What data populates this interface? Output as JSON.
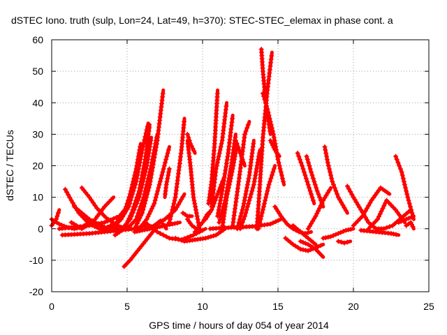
{
  "chart_data": {
    "type": "scatter",
    "title": "dSTEC Iono. truth (sulp, Lon=24, Lat=49, h=370): STEC-STEC_elemax in phase cont. a",
    "xlabel": "GPS time / hours of day 054 of year 2014",
    "ylabel": "dSTEC  / TECUs",
    "xlim": [
      0,
      25
    ],
    "ylim": [
      -20,
      60
    ],
    "xticks": [
      "0",
      "5",
      "10",
      "15",
      "20",
      "25"
    ],
    "yticks": [
      "-20",
      "-10",
      "0",
      "10",
      "20",
      "30",
      "40",
      "50",
      "60"
    ],
    "grid": true,
    "marker": "+",
    "color": "#ff0000",
    "series": [
      {
        "x": [
          0.0,
          0.3,
          0.5
        ],
        "y": [
          1,
          3,
          6
        ]
      },
      {
        "x": [
          0.0,
          0.5,
          1.0,
          1.5,
          2.0,
          2.5
        ],
        "y": [
          3,
          1.5,
          0.5,
          0,
          0.5,
          2
        ]
      },
      {
        "x": [
          0.7,
          1.5,
          2.5,
          3.5,
          4.5,
          5.5,
          6.2
        ],
        "y": [
          -2,
          -1.8,
          -1.5,
          -1,
          -0.5,
          0,
          1
        ]
      },
      {
        "x": [
          0.9,
          1.3,
          1.8,
          2.5,
          3.2,
          4.0
        ],
        "y": [
          12.5,
          9,
          5,
          1.5,
          0,
          0
        ]
      },
      {
        "x": [
          2.0,
          2.5,
          3.0,
          3.6,
          4.2,
          4.8
        ],
        "y": [
          13,
          10,
          6.5,
          3.5,
          1.5,
          0
        ]
      },
      {
        "x": [
          1.3,
          2.0,
          2.8,
          3.5,
          4.1
        ],
        "y": [
          2,
          0,
          2.5,
          7,
          10
        ]
      },
      {
        "x": [
          1.5,
          2.5,
          3.5,
          4.5,
          5.0
        ],
        "y": [
          7,
          3,
          0.5,
          0,
          1
        ]
      },
      {
        "x": [
          0.5,
          1.5,
          2.5,
          3.5,
          4.5,
          5.0
        ],
        "y": [
          0,
          0.5,
          1,
          2,
          4,
          7
        ]
      },
      {
        "x": [
          4.8,
          5.2,
          5.7,
          6.2,
          6.7
        ],
        "y": [
          -12,
          -10,
          -7,
          -4,
          -1
        ]
      },
      {
        "x": [
          3.5,
          4.3,
          4.8,
          5.2,
          5.6,
          5.9
        ],
        "y": [
          0,
          2,
          5,
          11,
          19,
          27
        ]
      },
      {
        "x": [
          4.0,
          4.6,
          5.1,
          5.6,
          6.0,
          6.4
        ],
        "y": [
          0,
          3,
          7,
          15,
          25,
          33.5
        ]
      },
      {
        "x": [
          4.5,
          5.2,
          5.8,
          6.3,
          6.6
        ],
        "y": [
          -1,
          3,
          10,
          20,
          29
        ]
      },
      {
        "x": [
          4.2,
          4.8,
          5.3,
          5.8,
          6.2,
          6.5
        ],
        "y": [
          -2,
          0,
          5,
          12,
          22,
          33
        ]
      },
      {
        "x": [
          5.0,
          5.6,
          6.1,
          6.6,
          7.0
        ],
        "y": [
          0,
          3,
          10,
          20,
          30
        ]
      },
      {
        "x": [
          5.5,
          6.0,
          6.5,
          7.0,
          7.4
        ],
        "y": [
          0,
          5,
          14,
          28,
          44
        ]
      },
      {
        "x": [
          5.8,
          6.3,
          6.8,
          7.3,
          7.8
        ],
        "y": [
          0,
          3,
          8,
          17,
          26
        ]
      },
      {
        "x": [
          6.2,
          6.8,
          7.5,
          8.2,
          8.8
        ],
        "y": [
          0,
          1,
          3,
          6,
          11
        ]
      },
      {
        "x": [
          5.5,
          6.0,
          6.5,
          7.0,
          7.5,
          8.0,
          8.5
        ],
        "y": [
          -1,
          -0.5,
          0,
          0.5,
          1,
          1.5,
          2
        ]
      },
      {
        "x": [
          6.4,
          6.8,
          7.2,
          7.6
        ],
        "y": [
          0,
          1,
          2.5,
          0
        ]
      },
      {
        "x": [
          7.8,
          7.6,
          7.5
        ],
        "y": [
          19,
          14,
          10
        ]
      },
      {
        "x": [
          6.2,
          7.0,
          7.8,
          8.6,
          9.4,
          10.2
        ],
        "y": [
          2,
          -1,
          -3,
          -3.5,
          -2,
          0
        ]
      },
      {
        "x": [
          7.8,
          8.2,
          8.6,
          8.8
        ],
        "y": [
          2,
          10,
          25,
          35
        ]
      },
      {
        "x": [
          8.2,
          8.8,
          9.5,
          10.2,
          10.9,
          11.5
        ],
        "y": [
          -3,
          -4,
          -3.5,
          -3,
          -2,
          0
        ]
      },
      {
        "x": [
          8.7,
          9.0,
          9.3
        ],
        "y": [
          5,
          4,
          4
        ]
      },
      {
        "x": [
          9.0,
          9.3,
          9.6
        ],
        "y": [
          3,
          1,
          0
        ]
      },
      {
        "x": [
          9.0,
          9.2,
          9.5
        ],
        "y": [
          30,
          27,
          24
        ]
      },
      {
        "x": [
          9.8,
          9.4,
          9.2,
          9.0
        ],
        "y": [
          0,
          10,
          20,
          28
        ]
      },
      {
        "x": [
          9.5,
          10.0,
          10.3,
          10.6
        ],
        "y": [
          -1,
          2,
          4.5,
          6
        ]
      },
      {
        "x": [
          10.2,
          10.6,
          11.0,
          11.4
        ],
        "y": [
          3,
          6,
          11,
          16
        ]
      },
      {
        "x": [
          10.4,
          10.6,
          10.8,
          11.0
        ],
        "y": [
          8,
          15,
          27,
          44
        ]
      },
      {
        "x": [
          10.6,
          10.9,
          11.3,
          11.6
        ],
        "y": [
          7,
          19,
          28,
          40
        ]
      },
      {
        "x": [
          11.0,
          11.3,
          11.7,
          12.0
        ],
        "y": [
          4,
          12,
          24,
          36
        ]
      },
      {
        "x": [
          11.1,
          11.5,
          11.9,
          12.2
        ],
        "y": [
          2,
          9,
          20,
          30
        ]
      },
      {
        "x": [
          11.3,
          11.6,
          12.0,
          12.3
        ],
        "y": [
          0,
          10,
          19,
          27
        ]
      },
      {
        "x": [
          12.0,
          12.4,
          12.8,
          13.1
        ],
        "y": [
          1,
          15,
          30,
          34
        ]
      },
      {
        "x": [
          12.3,
          12.7,
          13.1,
          13.4
        ],
        "y": [
          0,
          7,
          17,
          28
        ]
      },
      {
        "x": [
          12.5,
          12.8,
          13.1,
          13.4,
          13.8
        ],
        "y": [
          0,
          4,
          9,
          14,
          25
        ]
      },
      {
        "x": [
          12.2,
          12.5,
          12.8
        ],
        "y": [
          28,
          24,
          20
        ]
      },
      {
        "x": [
          13.6,
          13.8,
          14.0,
          14.3,
          14.6
        ],
        "y": [
          0,
          14,
          29,
          44,
          56
        ]
      },
      {
        "x": [
          13.9,
          14.0,
          14.2,
          14.5
        ],
        "y": [
          57,
          50,
          40,
          30
        ]
      },
      {
        "x": [
          14.0,
          14.3,
          14.7,
          15.0,
          15.4
        ],
        "y": [
          43,
          38,
          30,
          22,
          14
        ]
      },
      {
        "x": [
          14.5,
          14.8,
          15.1
        ],
        "y": [
          28,
          25,
          23
        ]
      },
      {
        "x": [
          13.7,
          14.0,
          14.4,
          14.8
        ],
        "y": [
          0,
          6,
          14,
          20
        ]
      },
      {
        "x": [
          14.8,
          15.2,
          15.6,
          16.0,
          16.4,
          16.8,
          17.2
        ],
        "y": [
          7,
          4,
          1.5,
          0,
          -1,
          -1.5,
          -1
        ]
      },
      {
        "x": [
          10.5,
          11.5,
          12.5,
          13.5,
          14.5,
          15.2
        ],
        "y": [
          0,
          0.3,
          0.5,
          0.8,
          1.5,
          3
        ]
      },
      {
        "x": [
          15.5,
          16.0,
          16.5,
          17.0,
          17.5,
          18.0
        ],
        "y": [
          -3,
          -5,
          -6.5,
          -7,
          -6,
          -5
        ]
      },
      {
        "x": [
          16.5,
          17.0,
          17.5,
          18.0
        ],
        "y": [
          -4,
          -5,
          -6.5,
          -9
        ]
      },
      {
        "x": [
          16.0,
          16.5,
          17.0,
          17.5
        ],
        "y": [
          1,
          -1,
          -3,
          -5
        ]
      },
      {
        "x": [
          16.3,
          16.6,
          17.0,
          17.4
        ],
        "y": [
          24,
          20,
          14,
          8
        ]
      },
      {
        "x": [
          16.9,
          17.2,
          17.6,
          18.0
        ],
        "y": [
          23,
          18,
          12,
          7
        ]
      },
      {
        "x": [
          17.0,
          17.5,
          18.0,
          18.5
        ],
        "y": [
          0,
          4,
          9,
          13
        ]
      },
      {
        "x": [
          18.1,
          18.3,
          18.6,
          19.0,
          19.6
        ],
        "y": [
          26,
          21,
          15,
          10,
          5
        ]
      },
      {
        "x": [
          18.0,
          18.5,
          19.0,
          19.5,
          20.0
        ],
        "y": [
          -3,
          -2.5,
          -1.5,
          -0.5,
          0
        ]
      },
      {
        "x": [
          19.0,
          19.4,
          19.8
        ],
        "y": [
          -4,
          -4.5,
          -4
        ]
      },
      {
        "x": [
          19.6,
          20.0,
          20.5,
          21.0,
          21.5,
          22.0
        ],
        "y": [
          13.5,
          10,
          6,
          2,
          0,
          0
        ]
      },
      {
        "x": [
          20.0,
          20.6,
          21.2,
          21.8,
          22.4
        ],
        "y": [
          1,
          4,
          9,
          13,
          11
        ]
      },
      {
        "x": [
          21.0,
          21.6,
          22.2,
          22.8,
          23.4
        ],
        "y": [
          0,
          3,
          9,
          6,
          2
        ]
      },
      {
        "x": [
          20.5,
          21.5,
          22.5,
          23.0
        ],
        "y": [
          -0.5,
          -1,
          -1.5,
          -2
        ]
      },
      {
        "x": [
          22.8,
          23.2,
          23.6,
          24.0
        ],
        "y": [
          23,
          18,
          10,
          3
        ]
      },
      {
        "x": [
          23.0,
          23.5,
          24.0
        ],
        "y": [
          2,
          3,
          4
        ]
      },
      {
        "x": [
          22.0,
          22.6,
          23.2,
          23.8
        ],
        "y": [
          0,
          1,
          3.5,
          6
        ]
      },
      {
        "x": [
          23.5,
          23.8,
          24.0
        ],
        "y": [
          1,
          2,
          0
        ]
      }
    ]
  }
}
